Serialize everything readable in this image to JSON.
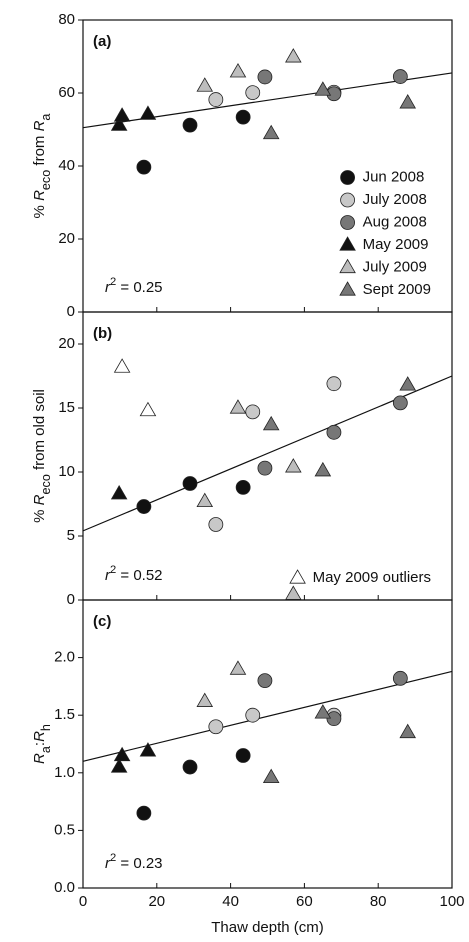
{
  "chart_data": [
    {
      "type": "scatter",
      "panel_label": "(a)",
      "ylabel": [
        {
          "text": "% "
        },
        {
          "text": "R",
          "style": "italic"
        },
        {
          "text": "eco",
          "style": "sub"
        },
        {
          "text": " from "
        },
        {
          "text": "R",
          "style": "italic"
        },
        {
          "text": "a",
          "style": "sub"
        }
      ],
      "ylim": [
        0,
        80
      ],
      "yticks": [
        0,
        20,
        40,
        60,
        80
      ],
      "legend": "lower right",
      "annotation": [
        {
          "text": "r",
          "style": "italic"
        },
        {
          "text": "2",
          "style": "sup"
        },
        {
          "text": " = 0.25"
        }
      ],
      "fit": {
        "x": [
          0,
          100
        ],
        "y": [
          50.5,
          65.5
        ]
      },
      "series": [
        {
          "name": "Jun 2008",
          "marker": "circle",
          "color": "#111111",
          "x": [
            16.5,
            29,
            43.4
          ],
          "values": [
            39.7,
            51.2,
            53.4
          ]
        },
        {
          "name": "July 2008",
          "marker": "circle",
          "color": "#c8c8c8",
          "x": [
            36,
            46,
            68
          ],
          "values": [
            58.2,
            60.1,
            60.2
          ]
        },
        {
          "name": "Aug 2008",
          "marker": "circle",
          "color": "#777777",
          "x": [
            49.3,
            68,
            86
          ],
          "values": [
            64.4,
            59.8,
            64.5
          ]
        },
        {
          "name": "May 2009",
          "marker": "triangle",
          "color": "#111111",
          "x": [
            9.8,
            10.6,
            17.6
          ],
          "values": [
            51.2,
            53.7,
            54.2
          ]
        },
        {
          "name": "July 2009",
          "marker": "triangle",
          "color": "#bdbdbd",
          "x": [
            33,
            42,
            57
          ],
          "values": [
            61.9,
            65.8,
            69.9
          ]
        },
        {
          "name": "Sept 2009",
          "marker": "triangle",
          "color": "#777777",
          "x": [
            51,
            65,
            88
          ],
          "values": [
            48.9,
            60.8,
            57.3
          ]
        }
      ]
    },
    {
      "type": "scatter",
      "panel_label": "(b)",
      "ylabel": [
        {
          "text": "% "
        },
        {
          "text": "R",
          "style": "italic"
        },
        {
          "text": "eco",
          "style": "sub"
        },
        {
          "text": " from old soil"
        }
      ],
      "ylim": [
        0,
        22.5
      ],
      "yticks": [
        0,
        5,
        10,
        15,
        20
      ],
      "legend": "lower right",
      "annotation": [
        {
          "text": "r",
          "style": "italic"
        },
        {
          "text": "2",
          "style": "sup"
        },
        {
          "text": " = 0.52"
        }
      ],
      "fit": {
        "x": [
          0,
          100
        ],
        "y": [
          5.4,
          17.5
        ]
      },
      "series": [
        {
          "marker": "circle",
          "color": "#111111",
          "x": [
            16.5,
            29,
            43.4
          ],
          "values": [
            7.3,
            9.1,
            8.8
          ]
        },
        {
          "marker": "circle",
          "color": "#c8c8c8",
          "x": [
            36,
            46,
            68
          ],
          "values": [
            5.9,
            14.7,
            16.9
          ]
        },
        {
          "marker": "circle",
          "color": "#777777",
          "x": [
            49.3,
            68,
            86
          ],
          "values": [
            10.3,
            13.1,
            15.4
          ]
        },
        {
          "marker": "triangle",
          "color": "#111111",
          "x": [
            9.8
          ],
          "values": [
            8.3
          ]
        },
        {
          "marker": "triangle",
          "color": "#bdbdbd",
          "x": [
            33,
            42,
            57
          ],
          "values": [
            7.7,
            15.0,
            10.4
          ]
        },
        {
          "marker": "triangle",
          "color": "#777777",
          "x": [
            51,
            65,
            88
          ],
          "values": [
            13.7,
            10.1,
            16.8
          ]
        },
        {
          "name": "May 2009 outliers",
          "marker": "triangle",
          "color": "#ffffff",
          "x": [
            10.6,
            17.6
          ],
          "values": [
            18.2,
            14.8
          ]
        }
      ]
    },
    {
      "type": "scatter",
      "panel_label": "(c)",
      "ylabel": [
        {
          "text": "R",
          "style": "italic"
        },
        {
          "text": "a",
          "style": "sub"
        },
        {
          "text": ":"
        },
        {
          "text": "R",
          "style": "italic"
        },
        {
          "text": "h",
          "style": "sub"
        }
      ],
      "xlabel": "Thaw depth (cm)",
      "xlim": [
        0,
        100
      ],
      "xticks": [
        0,
        20,
        40,
        60,
        80,
        100
      ],
      "ylim": [
        0,
        2.5
      ],
      "yticks": [
        {
          "value": 0,
          "label": "0.0"
        },
        {
          "value": 0.5,
          "label": "0.5"
        },
        {
          "value": 1,
          "label": "1.0"
        },
        {
          "value": 1.5,
          "label": "1.5"
        },
        {
          "value": 2,
          "label": "2.0"
        }
      ],
      "annotation": [
        {
          "text": "r",
          "style": "italic"
        },
        {
          "text": "2",
          "style": "sup"
        },
        {
          "text": " = 0.23"
        }
      ],
      "fit": {
        "x": [
          0,
          100
        ],
        "y": [
          1.1,
          1.88
        ]
      },
      "series": [
        {
          "marker": "circle",
          "color": "#111111",
          "x": [
            16.5,
            29,
            43.4
          ],
          "values": [
            0.65,
            1.05,
            1.15
          ]
        },
        {
          "marker": "circle",
          "color": "#c8c8c8",
          "x": [
            36,
            46,
            68
          ],
          "values": [
            1.4,
            1.5,
            1.5
          ]
        },
        {
          "marker": "circle",
          "color": "#777777",
          "x": [
            49.3,
            68,
            86
          ],
          "values": [
            1.8,
            1.47,
            1.82
          ]
        },
        {
          "marker": "triangle",
          "color": "#111111",
          "x": [
            9.8,
            10.6,
            17.6
          ],
          "values": [
            1.05,
            1.15,
            1.19
          ]
        },
        {
          "marker": "triangle",
          "color": "#bdbdbd",
          "x": [
            33,
            42,
            57
          ],
          "values": [
            1.62,
            1.9,
            2.55
          ]
        },
        {
          "marker": "triangle",
          "color": "#777777",
          "x": [
            51,
            65,
            88
          ],
          "values": [
            0.96,
            1.52,
            1.35
          ]
        }
      ]
    }
  ]
}
